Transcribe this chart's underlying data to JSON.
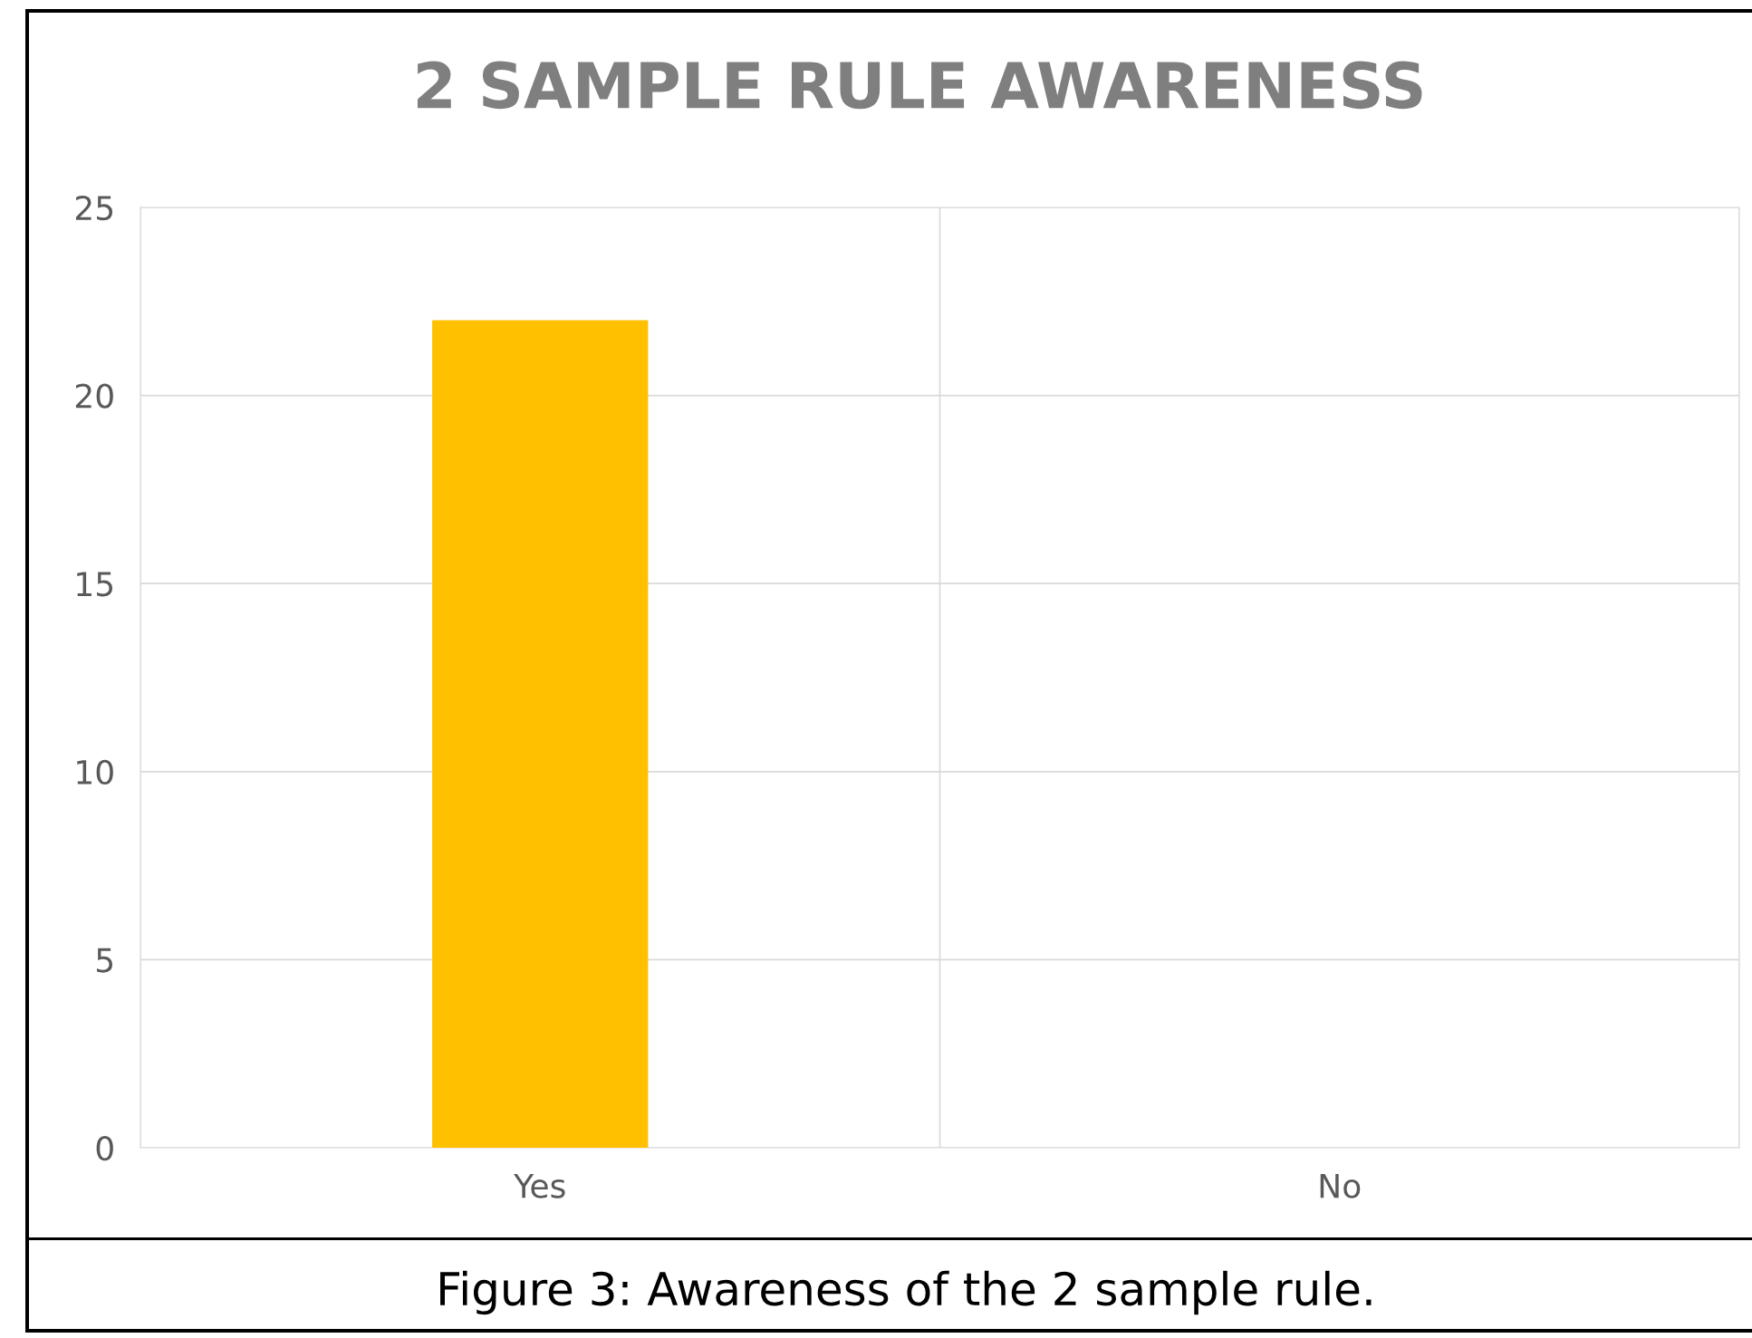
{
  "chart_data": {
    "type": "bar",
    "title": "2 SAMPLE RULE AWARENESS",
    "categories": [
      "Yes",
      "No"
    ],
    "series": [
      {
        "color": "#ffc000",
        "values": [
          22,
          0
        ]
      }
    ],
    "ylim": [
      0,
      25
    ],
    "yticks": [
      0,
      5,
      10,
      15,
      20,
      25
    ],
    "grid": true,
    "annotations": [
      "Figure 3: Awareness of the 2 sample rule."
    ]
  }
}
